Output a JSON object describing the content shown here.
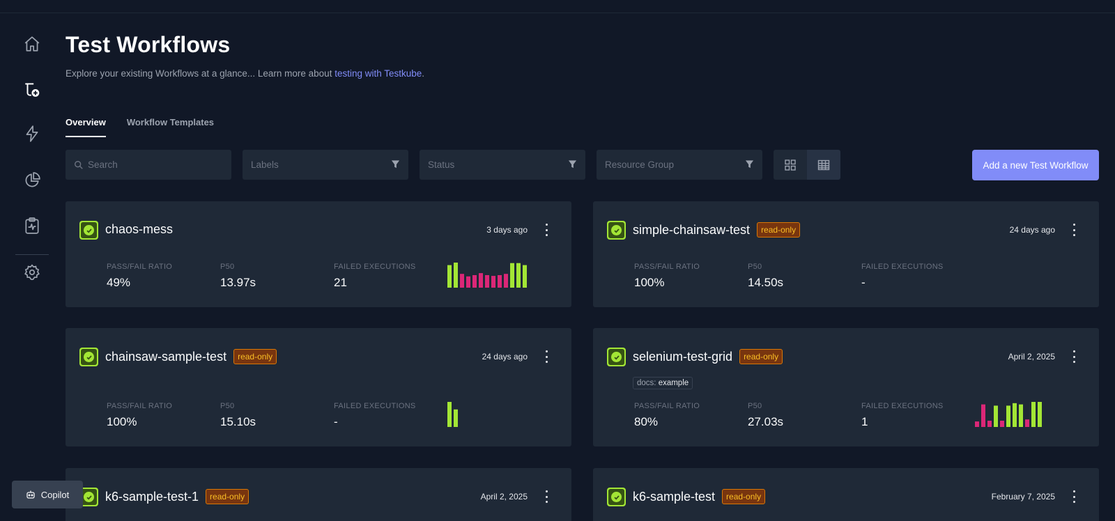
{
  "page": {
    "title": "Test Workflows",
    "subtitle_prefix": "Explore your existing Workflows at a glance... Learn more about ",
    "subtitle_link": "testing with Testkube",
    "subtitle_suffix": "."
  },
  "sidebar": {
    "items": [
      {
        "name": "home-icon"
      },
      {
        "name": "workflows-icon"
      },
      {
        "name": "triggers-icon"
      },
      {
        "name": "insights-icon"
      },
      {
        "name": "reports-icon"
      },
      {
        "name": "settings-icon"
      }
    ]
  },
  "tabs": [
    {
      "label": "Overview",
      "active": true
    },
    {
      "label": "Workflow Templates",
      "active": false
    }
  ],
  "toolbar": {
    "search_placeholder": "Search",
    "labels_placeholder": "Labels",
    "status_placeholder": "Status",
    "resource_group_placeholder": "Resource Group",
    "add_button": "Add a new Test Workflow"
  },
  "metric_labels": {
    "ratio": "PASS/FAIL RATIO",
    "p50": "P50",
    "failed": "FAILED EXECUTIONS"
  },
  "colors": {
    "pass": "#a3e635",
    "fail": "#db2777",
    "accent": "#818cf8"
  },
  "cards": [
    {
      "name": "chaos-mess",
      "read_only": "",
      "date": "3 days ago",
      "ratio": "49%",
      "p50": "13.97s",
      "failed": "21",
      "tag_key": "",
      "tag_value": "",
      "executions": [
        {
          "status": "pass",
          "duration": 0.9
        },
        {
          "status": "pass",
          "duration": 1.0
        },
        {
          "status": "fail",
          "duration": 0.55
        },
        {
          "status": "fail",
          "duration": 0.45
        },
        {
          "status": "fail",
          "duration": 0.5
        },
        {
          "status": "fail",
          "duration": 0.58
        },
        {
          "status": "fail",
          "duration": 0.5
        },
        {
          "status": "fail",
          "duration": 0.47
        },
        {
          "status": "fail",
          "duration": 0.5
        },
        {
          "status": "fail",
          "duration": 0.55
        },
        {
          "status": "pass",
          "duration": 0.98
        },
        {
          "status": "pass",
          "duration": 0.98
        },
        {
          "status": "pass",
          "duration": 0.9
        }
      ]
    },
    {
      "name": "simple-chainsaw-test",
      "read_only": "read-only",
      "date": "24 days ago",
      "ratio": "100%",
      "p50": "14.50s",
      "failed": "-",
      "tag_key": "",
      "tag_value": "",
      "executions": []
    },
    {
      "name": "chainsaw-sample-test",
      "read_only": "read-only",
      "date": "24 days ago",
      "ratio": "100%",
      "p50": "15.10s",
      "failed": "-",
      "tag_key": "",
      "tag_value": "",
      "executions": [
        {
          "status": "pass",
          "duration": 1.0
        },
        {
          "status": "pass",
          "duration": 0.7
        }
      ]
    },
    {
      "name": "selenium-test-grid",
      "read_only": "read-only",
      "date": "April 2, 2025",
      "ratio": "80%",
      "p50": "27.03s",
      "failed": "1",
      "tag_key": "docs: ",
      "tag_value": "example",
      "executions": [
        {
          "status": "fail",
          "duration": 0.22
        },
        {
          "status": "fail",
          "duration": 0.9
        },
        {
          "status": "fail",
          "duration": 0.25
        },
        {
          "status": "pass",
          "duration": 0.85
        },
        {
          "status": "fail",
          "duration": 0.25
        },
        {
          "status": "pass",
          "duration": 0.85
        },
        {
          "status": "pass",
          "duration": 0.95
        },
        {
          "status": "pass",
          "duration": 0.9
        },
        {
          "status": "fail",
          "duration": 0.3
        },
        {
          "status": "pass",
          "duration": 1.0
        },
        {
          "status": "pass",
          "duration": 1.0
        }
      ]
    },
    {
      "name": "k6-sample-test-1",
      "read_only": "read-only",
      "date": "April 2, 2025",
      "ratio": "",
      "p50": "",
      "failed": "",
      "tag_key": "",
      "tag_value": "",
      "executions": []
    },
    {
      "name": "k6-sample-test",
      "read_only": "read-only",
      "date": "February 7, 2025",
      "ratio": "",
      "p50": "",
      "failed": "",
      "tag_key": "",
      "tag_value": "",
      "executions": []
    }
  ],
  "copilot": {
    "label": "Copilot"
  }
}
